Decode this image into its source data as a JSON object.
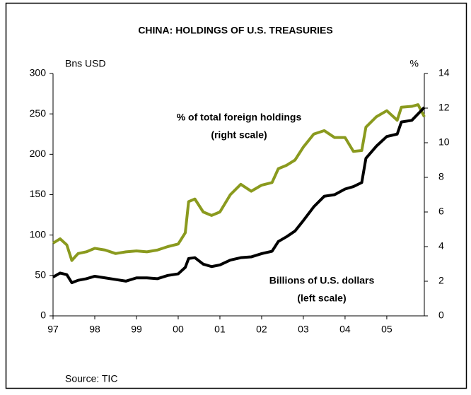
{
  "chart_data": {
    "type": "line",
    "title": "CHINA: HOLDINGS OF U.S. TREASURIES",
    "y_axis_label": "Bns USD",
    "y2_axis_label": "%",
    "annotations": [
      "% of total foreign holdings",
      "(right scale)",
      "Billions of U.S. dollars",
      "(left scale)"
    ],
    "source": "Source: TIC",
    "x": [
      1997.0,
      1997.17,
      1997.33,
      1997.45,
      1997.6,
      1997.8,
      1998.0,
      1998.25,
      1998.5,
      1998.75,
      1999.0,
      1999.25,
      1999.5,
      1999.75,
      2000.0,
      2000.17,
      2000.25,
      2000.4,
      2000.6,
      2000.8,
      2001.0,
      2001.25,
      2001.5,
      2001.75,
      2002.0,
      2002.25,
      2002.4,
      2002.6,
      2002.8,
      2003.0,
      2003.25,
      2003.5,
      2003.75,
      2004.0,
      2004.2,
      2004.4,
      2004.5,
      2004.75,
      2005.0,
      2005.25,
      2005.35,
      2005.6,
      2005.75,
      2005.9
    ],
    "series": [
      {
        "name": "Billions of U.S. dollars",
        "color": "#000000",
        "axis": "y",
        "values": [
          48,
          53,
          51,
          41,
          44,
          46,
          49,
          47,
          45,
          43,
          47,
          47,
          46,
          50,
          52,
          60,
          71,
          72,
          64,
          61,
          63,
          69,
          72,
          73,
          77,
          80,
          92,
          98,
          105,
          118,
          135,
          148,
          150,
          157,
          160,
          165,
          195,
          210,
          222,
          225,
          240,
          242,
          250,
          258
        ]
      },
      {
        "name": "% of total foreign holdings",
        "color": "#8a9a1e",
        "axis": "y2",
        "values": [
          4.2,
          4.45,
          4.1,
          3.2,
          3.6,
          3.7,
          3.9,
          3.8,
          3.6,
          3.7,
          3.75,
          3.7,
          3.8,
          4.0,
          4.15,
          4.8,
          6.6,
          6.75,
          6.0,
          5.8,
          6.0,
          7.0,
          7.6,
          7.2,
          7.55,
          7.7,
          8.5,
          8.7,
          9.0,
          9.75,
          10.5,
          10.7,
          10.3,
          10.3,
          9.5,
          9.55,
          10.9,
          11.5,
          11.85,
          11.3,
          12.05,
          12.1,
          12.2,
          11.5
        ]
      }
    ],
    "xlim": [
      1997.0,
      2005.9
    ],
    "xticks": [
      {
        "value": 1997,
        "label": "97"
      },
      {
        "value": 1998,
        "label": "98"
      },
      {
        "value": 1999,
        "label": "99"
      },
      {
        "value": 2000,
        "label": "00"
      },
      {
        "value": 2001,
        "label": "01"
      },
      {
        "value": 2002,
        "label": "02"
      },
      {
        "value": 2003,
        "label": "03"
      },
      {
        "value": 2004,
        "label": "04"
      },
      {
        "value": 2005,
        "label": "05"
      }
    ],
    "ylim": [
      0,
      300
    ],
    "yticks": [
      0,
      50,
      100,
      150,
      200,
      250,
      300
    ],
    "y2lim": [
      0,
      14
    ],
    "y2ticks": [
      0,
      2,
      4,
      6,
      8,
      10,
      12,
      14
    ]
  }
}
